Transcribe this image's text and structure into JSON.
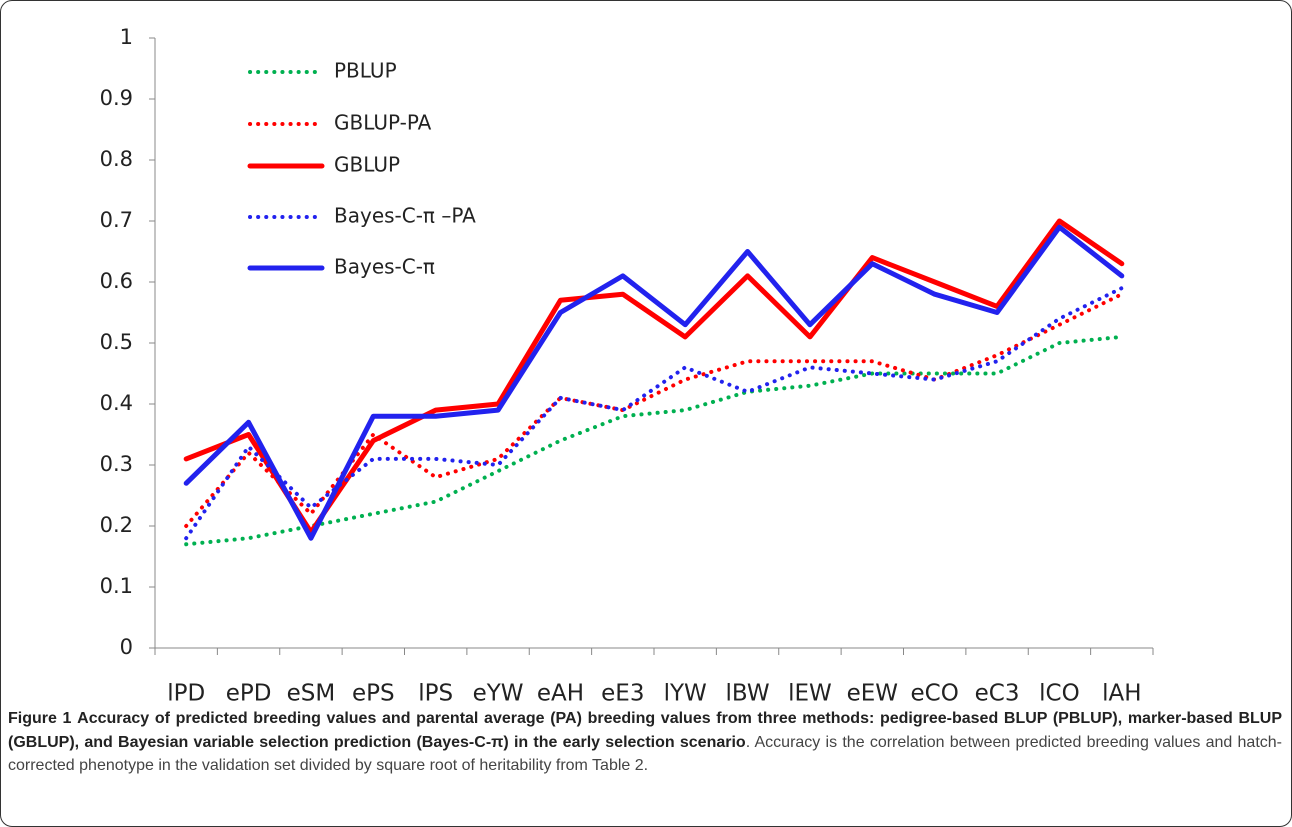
{
  "chart_data": {
    "type": "line",
    "categories": [
      "lPD",
      "ePD",
      "eSM",
      "ePS",
      "lPS",
      "eYW",
      "eAH",
      "eE3",
      "lYW",
      "lBW",
      "lEW",
      "eEW",
      "eCO",
      "eC3",
      "lCO",
      "lAH"
    ],
    "ylim": [
      0,
      1
    ],
    "yticks": [
      0,
      0.1,
      0.2,
      0.3,
      0.4,
      0.5,
      0.6,
      0.7,
      0.8,
      0.9,
      1
    ],
    "series": [
      {
        "name": "PBLUP",
        "color": "#00b050",
        "dotted": true,
        "values": [
          0.17,
          0.18,
          0.2,
          0.22,
          0.24,
          0.29,
          0.34,
          0.38,
          0.39,
          0.42,
          0.43,
          0.45,
          0.45,
          0.45,
          0.5,
          0.51
        ]
      },
      {
        "name": "GBLUP-PA",
        "color": "#ff0000",
        "dotted": true,
        "values": [
          0.2,
          0.32,
          0.22,
          0.35,
          0.28,
          0.31,
          0.41,
          0.39,
          0.44,
          0.47,
          0.47,
          0.47,
          0.44,
          0.48,
          0.53,
          0.58
        ]
      },
      {
        "name": "GBLUP",
        "color": "#ff0000",
        "dotted": false,
        "values": [
          0.31,
          0.35,
          0.19,
          0.34,
          0.39,
          0.4,
          0.57,
          0.58,
          0.51,
          0.61,
          0.51,
          0.64,
          0.6,
          0.56,
          0.7,
          0.63
        ]
      },
      {
        "name": "Bayes-C-π –PA",
        "color": "#2222ee",
        "dotted": true,
        "values": [
          0.18,
          0.33,
          0.23,
          0.31,
          0.31,
          0.3,
          0.41,
          0.39,
          0.46,
          0.42,
          0.46,
          0.45,
          0.44,
          0.47,
          0.54,
          0.59
        ]
      },
      {
        "name": "Bayes-C-π",
        "color": "#2222ee",
        "dotted": false,
        "values": [
          0.27,
          0.37,
          0.18,
          0.38,
          0.38,
          0.39,
          0.55,
          0.61,
          0.53,
          0.65,
          0.53,
          0.63,
          0.58,
          0.55,
          0.69,
          0.61
        ]
      }
    ]
  },
  "caption": {
    "label": "Figure 1",
    "title": "Accuracy of predicted breeding values and parental average (PA) breeding values from three methods: pedigree-based BLUP (PBLUP), marker-based BLUP (GBLUP), and Bayesian variable selection prediction (Bayes-C-π) in the early selection scenario",
    "text": ". Accuracy is the correlation between predicted breeding values and hatch-corrected phenotype in the validation set divided by square root of heritability from Table 2."
  }
}
